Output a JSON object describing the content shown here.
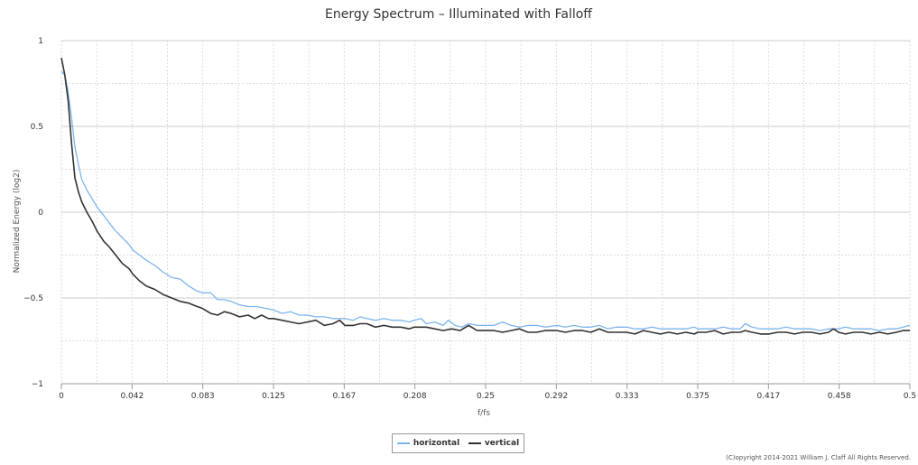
{
  "chart_data": {
    "type": "line",
    "title": "Energy Spectrum – Illuminated with Falloff",
    "xlabel": "f/fs",
    "ylabel": "Normalized Energy (log2)",
    "xlim": [
      0,
      0.5
    ],
    "ylim": [
      -1,
      1
    ],
    "x_ticks": [
      "0",
      "0.042",
      "0.083",
      "0.125",
      "0.167",
      "0.208",
      "0.25",
      "0.292",
      "0.333",
      "0.375",
      "0.417",
      "0.458",
      "0.5"
    ],
    "y_ticks": [
      "1",
      "0.5",
      "0",
      "−0.5",
      "−1"
    ],
    "grid": true,
    "legend_position": "bottom-center",
    "series": [
      {
        "name": "horizontal",
        "color": "#7cb5ec",
        "points": [
          [
            0,
            0.82
          ],
          [
            0.002,
            0.8
          ],
          [
            0.004,
            0.7
          ],
          [
            0.006,
            0.55
          ],
          [
            0.008,
            0.38
          ],
          [
            0.01,
            0.28
          ],
          [
            0.012,
            0.19
          ],
          [
            0.015,
            0.13
          ],
          [
            0.018,
            0.08
          ],
          [
            0.021,
            0.03
          ],
          [
            0.025,
            -0.02
          ],
          [
            0.028,
            -0.06
          ],
          [
            0.032,
            -0.11
          ],
          [
            0.036,
            -0.15
          ],
          [
            0.04,
            -0.19
          ],
          [
            0.042,
            -0.22
          ],
          [
            0.046,
            -0.25
          ],
          [
            0.05,
            -0.28
          ],
          [
            0.055,
            -0.31
          ],
          [
            0.06,
            -0.35
          ],
          [
            0.065,
            -0.38
          ],
          [
            0.07,
            -0.39
          ],
          [
            0.075,
            -0.43
          ],
          [
            0.08,
            -0.46
          ],
          [
            0.083,
            -0.47
          ],
          [
            0.088,
            -0.47
          ],
          [
            0.092,
            -0.51
          ],
          [
            0.096,
            -0.51
          ],
          [
            0.1,
            -0.52
          ],
          [
            0.105,
            -0.54
          ],
          [
            0.11,
            -0.55
          ],
          [
            0.115,
            -0.55
          ],
          [
            0.12,
            -0.56
          ],
          [
            0.125,
            -0.57
          ],
          [
            0.13,
            -0.59
          ],
          [
            0.135,
            -0.58
          ],
          [
            0.14,
            -0.6
          ],
          [
            0.145,
            -0.6
          ],
          [
            0.15,
            -0.61
          ],
          [
            0.155,
            -0.61
          ],
          [
            0.16,
            -0.62
          ],
          [
            0.167,
            -0.62
          ],
          [
            0.172,
            -0.63
          ],
          [
            0.176,
            -0.61
          ],
          [
            0.18,
            -0.62
          ],
          [
            0.185,
            -0.63
          ],
          [
            0.19,
            -0.62
          ],
          [
            0.195,
            -0.63
          ],
          [
            0.2,
            -0.63
          ],
          [
            0.205,
            -0.64
          ],
          [
            0.208,
            -0.63
          ],
          [
            0.212,
            -0.62
          ],
          [
            0.215,
            -0.65
          ],
          [
            0.22,
            -0.64
          ],
          [
            0.225,
            -0.66
          ],
          [
            0.228,
            -0.63
          ],
          [
            0.232,
            -0.66
          ],
          [
            0.236,
            -0.67
          ],
          [
            0.24,
            -0.65
          ],
          [
            0.245,
            -0.66
          ],
          [
            0.25,
            -0.66
          ],
          [
            0.255,
            -0.66
          ],
          [
            0.26,
            -0.64
          ],
          [
            0.265,
            -0.66
          ],
          [
            0.27,
            -0.67
          ],
          [
            0.275,
            -0.66
          ],
          [
            0.28,
            -0.66
          ],
          [
            0.285,
            -0.67
          ],
          [
            0.292,
            -0.66
          ],
          [
            0.297,
            -0.67
          ],
          [
            0.302,
            -0.66
          ],
          [
            0.307,
            -0.67
          ],
          [
            0.312,
            -0.67
          ],
          [
            0.317,
            -0.66
          ],
          [
            0.322,
            -0.68
          ],
          [
            0.327,
            -0.67
          ],
          [
            0.333,
            -0.67
          ],
          [
            0.338,
            -0.68
          ],
          [
            0.343,
            -0.68
          ],
          [
            0.348,
            -0.67
          ],
          [
            0.353,
            -0.68
          ],
          [
            0.358,
            -0.68
          ],
          [
            0.363,
            -0.68
          ],
          [
            0.368,
            -0.68
          ],
          [
            0.373,
            -0.67
          ],
          [
            0.375,
            -0.68
          ],
          [
            0.38,
            -0.68
          ],
          [
            0.385,
            -0.68
          ],
          [
            0.39,
            -0.67
          ],
          [
            0.395,
            -0.68
          ],
          [
            0.4,
            -0.68
          ],
          [
            0.403,
            -0.65
          ],
          [
            0.407,
            -0.67
          ],
          [
            0.412,
            -0.68
          ],
          [
            0.417,
            -0.68
          ],
          [
            0.422,
            -0.68
          ],
          [
            0.427,
            -0.67
          ],
          [
            0.432,
            -0.68
          ],
          [
            0.437,
            -0.68
          ],
          [
            0.442,
            -0.68
          ],
          [
            0.447,
            -0.69
          ],
          [
            0.452,
            -0.68
          ],
          [
            0.458,
            -0.68
          ],
          [
            0.462,
            -0.67
          ],
          [
            0.467,
            -0.68
          ],
          [
            0.472,
            -0.68
          ],
          [
            0.477,
            -0.68
          ],
          [
            0.482,
            -0.69
          ],
          [
            0.487,
            -0.68
          ],
          [
            0.492,
            -0.68
          ],
          [
            0.496,
            -0.67
          ],
          [
            0.5,
            -0.66
          ]
        ]
      },
      {
        "name": "vertical",
        "color": "#333333",
        "points": [
          [
            0,
            0.9
          ],
          [
            0.002,
            0.8
          ],
          [
            0.004,
            0.65
          ],
          [
            0.006,
            0.4
          ],
          [
            0.008,
            0.2
          ],
          [
            0.01,
            0.12
          ],
          [
            0.012,
            0.06
          ],
          [
            0.015,
            0.0
          ],
          [
            0.018,
            -0.05
          ],
          [
            0.021,
            -0.11
          ],
          [
            0.025,
            -0.17
          ],
          [
            0.028,
            -0.2
          ],
          [
            0.032,
            -0.25
          ],
          [
            0.036,
            -0.3
          ],
          [
            0.04,
            -0.33
          ],
          [
            0.042,
            -0.36
          ],
          [
            0.046,
            -0.4
          ],
          [
            0.05,
            -0.43
          ],
          [
            0.055,
            -0.45
          ],
          [
            0.06,
            -0.48
          ],
          [
            0.065,
            -0.5
          ],
          [
            0.07,
            -0.52
          ],
          [
            0.075,
            -0.53
          ],
          [
            0.08,
            -0.55
          ],
          [
            0.083,
            -0.56
          ],
          [
            0.088,
            -0.59
          ],
          [
            0.092,
            -0.6
          ],
          [
            0.096,
            -0.58
          ],
          [
            0.1,
            -0.59
          ],
          [
            0.105,
            -0.61
          ],
          [
            0.11,
            -0.6
          ],
          [
            0.114,
            -0.62
          ],
          [
            0.118,
            -0.6
          ],
          [
            0.122,
            -0.62
          ],
          [
            0.125,
            -0.62
          ],
          [
            0.13,
            -0.63
          ],
          [
            0.135,
            -0.64
          ],
          [
            0.14,
            -0.65
          ],
          [
            0.145,
            -0.64
          ],
          [
            0.15,
            -0.63
          ],
          [
            0.155,
            -0.66
          ],
          [
            0.16,
            -0.65
          ],
          [
            0.164,
            -0.63
          ],
          [
            0.167,
            -0.66
          ],
          [
            0.172,
            -0.66
          ],
          [
            0.176,
            -0.65
          ],
          [
            0.18,
            -0.65
          ],
          [
            0.185,
            -0.67
          ],
          [
            0.19,
            -0.66
          ],
          [
            0.195,
            -0.67
          ],
          [
            0.2,
            -0.67
          ],
          [
            0.205,
            -0.68
          ],
          [
            0.208,
            -0.67
          ],
          [
            0.212,
            -0.67
          ],
          [
            0.215,
            -0.67
          ],
          [
            0.22,
            -0.68
          ],
          [
            0.225,
            -0.69
          ],
          [
            0.23,
            -0.68
          ],
          [
            0.235,
            -0.69
          ],
          [
            0.24,
            -0.66
          ],
          [
            0.245,
            -0.69
          ],
          [
            0.25,
            -0.69
          ],
          [
            0.255,
            -0.69
          ],
          [
            0.26,
            -0.7
          ],
          [
            0.265,
            -0.69
          ],
          [
            0.27,
            -0.68
          ],
          [
            0.275,
            -0.7
          ],
          [
            0.28,
            -0.7
          ],
          [
            0.285,
            -0.69
          ],
          [
            0.292,
            -0.69
          ],
          [
            0.297,
            -0.7
          ],
          [
            0.302,
            -0.69
          ],
          [
            0.307,
            -0.69
          ],
          [
            0.312,
            -0.7
          ],
          [
            0.317,
            -0.68
          ],
          [
            0.322,
            -0.7
          ],
          [
            0.327,
            -0.7
          ],
          [
            0.333,
            -0.7
          ],
          [
            0.338,
            -0.71
          ],
          [
            0.343,
            -0.69
          ],
          [
            0.348,
            -0.7
          ],
          [
            0.353,
            -0.71
          ],
          [
            0.358,
            -0.7
          ],
          [
            0.363,
            -0.71
          ],
          [
            0.368,
            -0.7
          ],
          [
            0.373,
            -0.71
          ],
          [
            0.375,
            -0.7
          ],
          [
            0.38,
            -0.7
          ],
          [
            0.385,
            -0.69
          ],
          [
            0.39,
            -0.71
          ],
          [
            0.395,
            -0.7
          ],
          [
            0.4,
            -0.7
          ],
          [
            0.403,
            -0.69
          ],
          [
            0.407,
            -0.7
          ],
          [
            0.412,
            -0.71
          ],
          [
            0.417,
            -0.71
          ],
          [
            0.422,
            -0.7
          ],
          [
            0.427,
            -0.7
          ],
          [
            0.432,
            -0.71
          ],
          [
            0.437,
            -0.7
          ],
          [
            0.442,
            -0.7
          ],
          [
            0.447,
            -0.71
          ],
          [
            0.452,
            -0.7
          ],
          [
            0.455,
            -0.68
          ],
          [
            0.458,
            -0.7
          ],
          [
            0.462,
            -0.71
          ],
          [
            0.467,
            -0.7
          ],
          [
            0.472,
            -0.7
          ],
          [
            0.477,
            -0.71
          ],
          [
            0.482,
            -0.7
          ],
          [
            0.487,
            -0.71
          ],
          [
            0.492,
            -0.7
          ],
          [
            0.496,
            -0.69
          ],
          [
            0.5,
            -0.69
          ]
        ]
      }
    ]
  },
  "copyright": "(C)opyright 2014-2021 William J. Claff All Rights Reserved."
}
